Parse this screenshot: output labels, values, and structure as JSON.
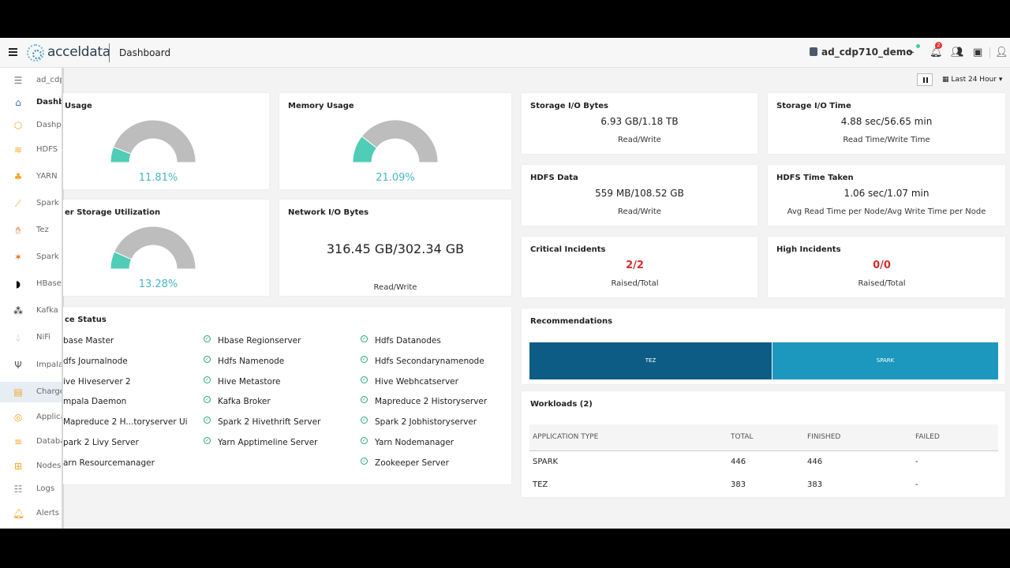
{
  "header": {
    "logo_text": "acceldata",
    "breadcrumb": "Dashboard",
    "cluster_name": "ad_cdp710_demo",
    "notification_count": "2"
  },
  "sidebar": {
    "items": [
      {
        "label": "ad_cdp",
        "icon": "cluster-icon"
      },
      {
        "label": "Dashb",
        "icon": "home-icon"
      },
      {
        "label": "Dashp",
        "icon": "cube-icon"
      },
      {
        "label": "HDFS",
        "icon": "layers-icon"
      },
      {
        "label": "YARN",
        "icon": "hierarchy-icon"
      },
      {
        "label": "Spark T",
        "icon": "trend-icon"
      },
      {
        "label": "Tez",
        "icon": "tez-icon"
      },
      {
        "label": "Spark",
        "icon": "spark-icon"
      },
      {
        "label": "HBase",
        "icon": "hbase-icon"
      },
      {
        "label": "Kafka",
        "icon": "kafka-icon"
      },
      {
        "label": "NiFi",
        "icon": "nifi-icon"
      },
      {
        "label": "Impala",
        "icon": "impala-icon"
      },
      {
        "label": "Charge",
        "icon": "document-icon"
      },
      {
        "label": "Applica",
        "icon": "target-icon"
      },
      {
        "label": "Databa",
        "icon": "database-icon"
      },
      {
        "label": "Nodes",
        "icon": "grid-icon"
      },
      {
        "label": "Logs",
        "icon": "log-icon"
      },
      {
        "label": "Alerts",
        "icon": "bell-icon"
      }
    ]
  },
  "toolbar": {
    "time_range": "Last 24 Hour"
  },
  "metrics": {
    "cpu": {
      "title": "Usage",
      "value": "11.81%",
      "fraction": 0.1181
    },
    "memory": {
      "title": "Memory Usage",
      "value": "21.09%",
      "fraction": 0.2109
    },
    "storage": {
      "title": "er Storage Utilization",
      "value": "13.28%",
      "fraction": 0.1328
    },
    "network": {
      "title": "Network I/O Bytes",
      "value": "316.45 GB/302.34 GB",
      "sub": "Read/Write"
    },
    "storage_io_bytes": {
      "title": "Storage I/O Bytes",
      "value": "6.93 GB/1.18 TB",
      "sub": "Read/Write"
    },
    "storage_io_time": {
      "title": "Storage I/O Time",
      "value": "4.88 sec/56.65 min",
      "sub": "Read Time/Write Time"
    },
    "hdfs_data": {
      "title": "HDFS Data",
      "value": "559 MB/108.52 GB",
      "sub": "Read/Write"
    },
    "hdfs_time": {
      "title": "HDFS Time Taken",
      "value": "1.06 sec/1.07 min",
      "sub": "Avg Read Time per Node/Avg Write Time per Node"
    },
    "critical": {
      "title": "Critical Incidents",
      "value": "2/2",
      "sub": "Raised/Total"
    },
    "high": {
      "title": "High Incidents",
      "value": "0/0",
      "sub": "Raised/Total"
    }
  },
  "service_status": {
    "title": "ce Status",
    "col1": [
      "base Master",
      "dfs Journalnode",
      "ive Hiveserver 2",
      "mpala Daemon",
      "Mapreduce 2 H...toryserver Ui",
      "park 2 Livy Server",
      "arn Resourcemanager"
    ],
    "col2": [
      "Hbase Regionserver",
      "Hdfs Namenode",
      "Hive Metastore",
      "Kafka Broker",
      "Spark 2 Hivethrift Server",
      "Yarn Apptimeline Server"
    ],
    "col3": [
      "Hdfs Datanodes",
      "Hdfs Secondarynamenode",
      "Hive Webhcatserver",
      "Mapreduce 2 Historyserver",
      "Spark 2 Jobhistoryserver",
      "Yarn Nodemanager",
      "Zookeeper Server"
    ]
  },
  "recommendations": {
    "title": "Recommendations",
    "items": [
      {
        "label": "TEZ",
        "color": "#0d5c86"
      },
      {
        "label": "SPARK",
        "color": "#1c97bd"
      }
    ]
  },
  "workloads": {
    "title": "Workloads (2)",
    "columns": [
      "APPLICATION TYPE",
      "TOTAL",
      "FINISHED",
      "FAILED"
    ],
    "rows": [
      [
        "SPARK",
        "446",
        "446",
        "-"
      ],
      [
        "TEZ",
        "383",
        "383",
        "-"
      ]
    ]
  },
  "colors": {
    "gauge_fill": "#4fcdb6",
    "gauge_track": "#bdbdbd",
    "gauge_text": "#49b6c7",
    "incident_red": "#d32f2f"
  }
}
